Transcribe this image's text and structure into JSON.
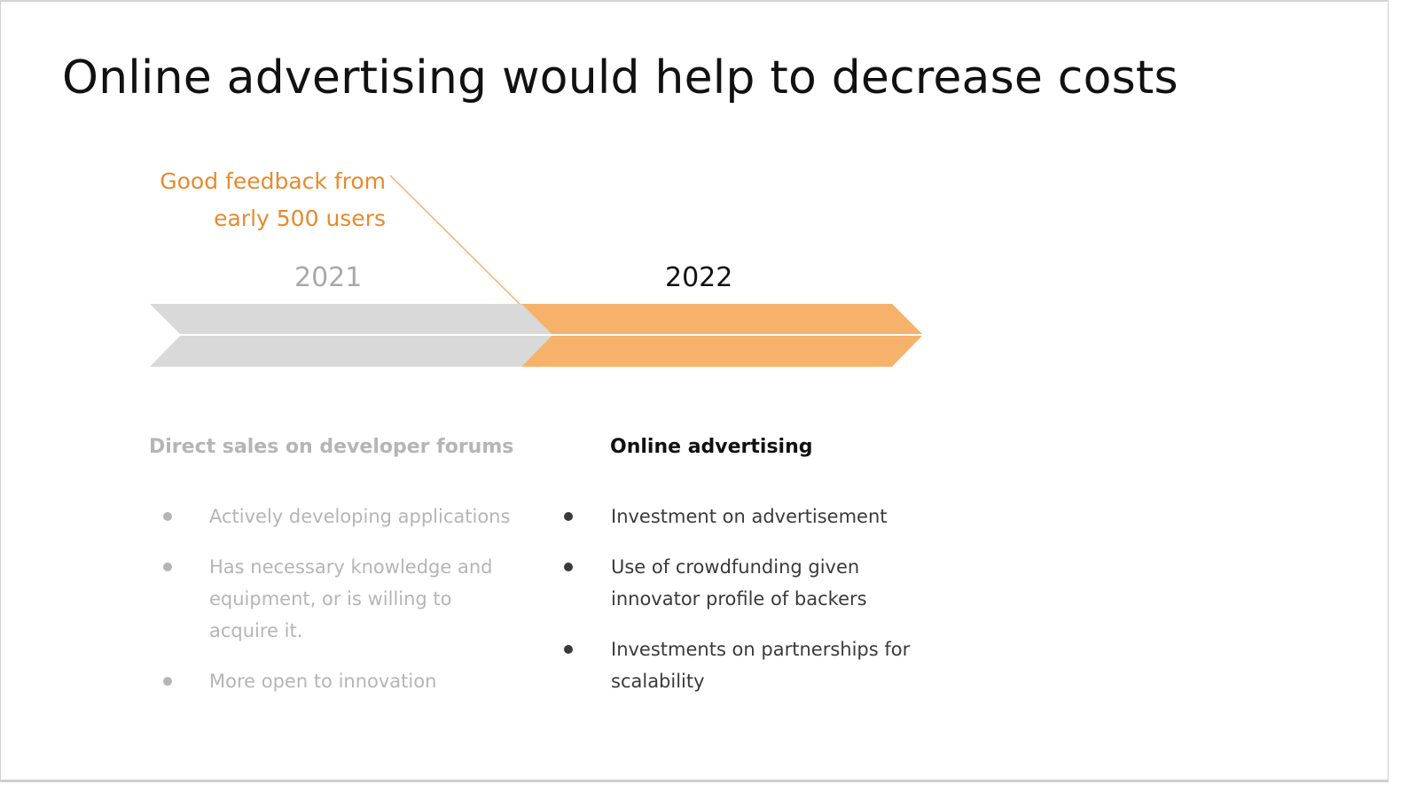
{
  "slide": {
    "title": "Online advertising would help to decrease costs"
  },
  "callout": {
    "line1": "Good feedback from",
    "line2": "early 500 users"
  },
  "timeline": {
    "years": [
      "2021",
      "2022"
    ],
    "colors": {
      "past": "#d9d9d9",
      "current": "#f6b26b",
      "callout": "#e78a2d"
    }
  },
  "columns": [
    {
      "heading": "Direct sales on developer forums",
      "bullets": [
        "Actively developing applications",
        "Has necessary knowledge and equipment, or is willing to acquire it.",
        "More open to innovation"
      ]
    },
    {
      "heading": "Online advertising",
      "bullets": [
        "Investment on advertisement",
        "Use of crowdfunding given innovator profile of backers",
        "Investments on partnerships for scalability"
      ]
    }
  ]
}
